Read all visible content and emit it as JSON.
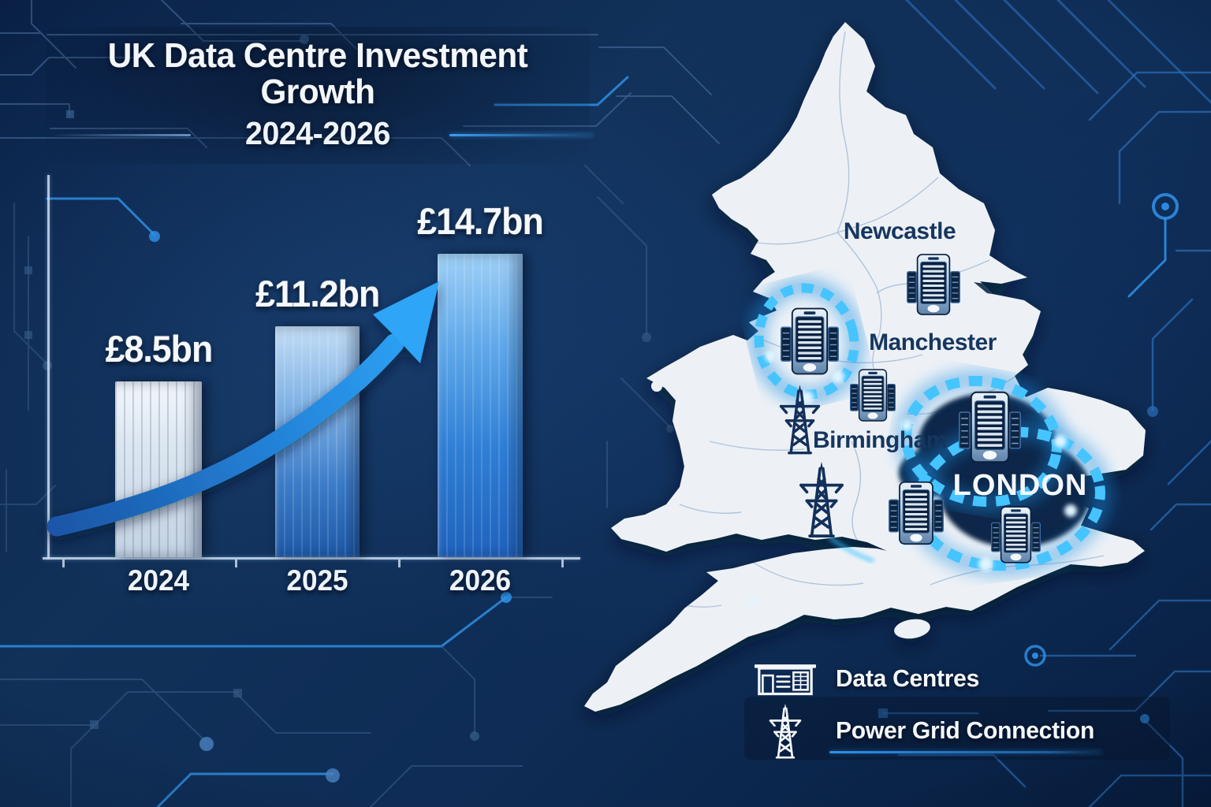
{
  "header": {
    "title": "UK Data Centre Investment Growth",
    "subtitle": "2024-2026"
  },
  "chart_data": {
    "type": "bar",
    "title": "UK Data Centre Investment Growth",
    "subtitle": "2024-2026",
    "categories": [
      "2024",
      "2025",
      "2026"
    ],
    "values": [
      8.5,
      11.2,
      14.7
    ],
    "value_labels": [
      "£8.5bn",
      "£11.2bn",
      "£14.7bn"
    ],
    "unit": "billions GBP",
    "ylim": [
      0,
      14.7
    ],
    "grid": false,
    "legend_position": "none",
    "annotations": [
      "upward curved growth arrow across bars"
    ]
  },
  "map": {
    "region": "England and Wales",
    "cities": [
      {
        "name": "Newcastle"
      },
      {
        "name": "Manchester"
      },
      {
        "name": "Birmingham"
      },
      {
        "name": "LONDON"
      }
    ],
    "data_centre_marker_count": 6,
    "power_pylon_marker_count": 2,
    "highlight_clusters": [
      "north-west glow ring",
      "London glow ring"
    ]
  },
  "legend": {
    "items": [
      {
        "icon": "data-centre-building-icon",
        "label": "Data Centres"
      },
      {
        "icon": "power-pylon-icon",
        "label": "Power Grid Connection"
      }
    ]
  },
  "colors": {
    "background": "#0e2c55",
    "circuit_bright": "#2f93ea",
    "circuit_dim": "#3b5f8a",
    "bar_2024": "#dde7f1",
    "bar_2025": "#3c7cc8",
    "bar_2026": "#2f7fd6",
    "arrow": "#2ea5f7",
    "map_fill": "#edf1f6",
    "city_label": "#16365f",
    "london_label": "#f4f8fc",
    "glow_ring": "#45c4ff",
    "text": "#f4f8fc"
  }
}
